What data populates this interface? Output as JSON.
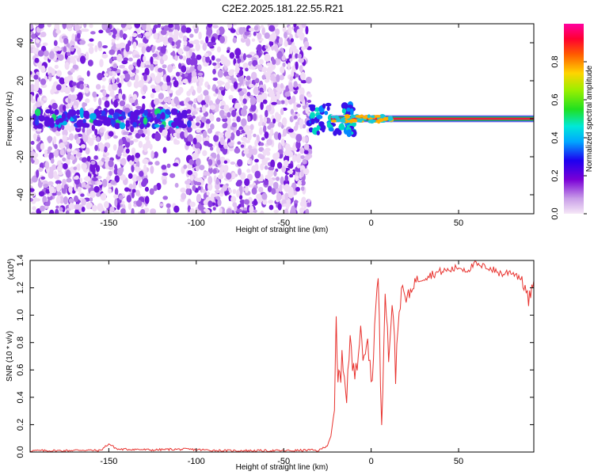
{
  "chart_data": [
    {
      "type": "heatmap",
      "title": "C2E2.2025.181.22.55.R21",
      "xlabel": "Height of straight line (km)",
      "ylabel": "Frequency (Hz)",
      "xlim": [
        -195,
        93
      ],
      "ylim": [
        -50,
        50
      ],
      "xticks": [
        -150,
        -100,
        -50,
        0,
        50
      ],
      "yticks": [
        -40,
        -20,
        0,
        20,
        40
      ],
      "colorbar": {
        "label": "Normalized spectral amplitude",
        "range": [
          0.0,
          1.0
        ],
        "ticks": [
          "0.0",
          "0.2",
          "0.4",
          "0.6",
          "0.8"
        ]
      },
      "features": [
        {
          "x_range": [
            -195,
            -35
          ],
          "frequency": 0,
          "peak_amplitude": 0.4,
          "description": "scattered noise, weak band near 0 Hz"
        },
        {
          "x_range": [
            -35,
            93
          ],
          "frequency": 0,
          "peak_amplitude": 0.95,
          "description": "strong narrow line at 0 Hz"
        }
      ],
      "grid": false
    },
    {
      "type": "line",
      "xlabel": "Height of straight line (km)",
      "ylabel": "SNR (10 * v/v)",
      "y_multiplier": "(x10^4)",
      "xlim": [
        -195,
        93
      ],
      "ylim": [
        0,
        1.4
      ],
      "xticks": [
        -150,
        -100,
        -50,
        0,
        50
      ],
      "yticks": [
        "0.0",
        "0.2",
        "0.4",
        "0.6",
        "0.8",
        "1.0",
        "1.2",
        "1.4"
      ],
      "series": [
        {
          "color": "#e8322e",
          "x": [
            -195,
            -185,
            -175,
            -165,
            -155,
            -150,
            -145,
            -135,
            -125,
            -115,
            -105,
            -95,
            -85,
            -75,
            -65,
            -55,
            -45,
            -35,
            -30,
            -25,
            -23,
            -21,
            -20,
            -19,
            -18,
            -16,
            -14,
            -12,
            -10,
            -8,
            -6,
            -4,
            -2,
            0,
            2,
            4,
            6,
            8,
            10,
            12,
            14,
            16,
            18,
            20,
            25,
            30,
            35,
            40,
            45,
            50,
            55,
            60,
            62,
            65,
            70,
            75,
            80,
            85,
            88,
            90,
            93
          ],
          "y": [
            0.01,
            0.01,
            0.01,
            0.015,
            0.01,
            0.06,
            0.02,
            0.02,
            0.015,
            0.02,
            0.02,
            0.015,
            0.01,
            0.01,
            0.01,
            0.01,
            0.01,
            0.015,
            0.01,
            0.05,
            0.12,
            0.3,
            0.95,
            0.45,
            0.6,
            0.65,
            0.45,
            0.8,
            0.55,
            0.7,
            0.95,
            0.6,
            0.85,
            0.5,
            0.9,
            1.3,
            0.2,
            1.2,
            0.7,
            1.1,
            0.6,
            1.05,
            1.2,
            1.1,
            1.25,
            1.28,
            1.3,
            1.32,
            1.33,
            1.35,
            1.33,
            1.38,
            1.35,
            1.36,
            1.33,
            1.3,
            1.32,
            1.28,
            1.2,
            1.1,
            1.25
          ]
        }
      ],
      "grid": false
    }
  ]
}
